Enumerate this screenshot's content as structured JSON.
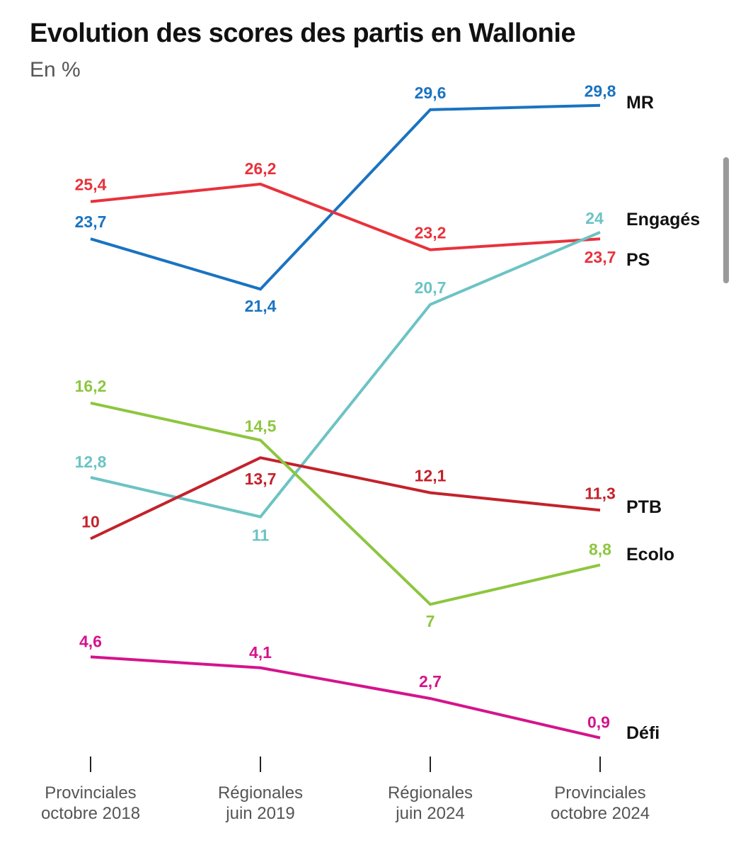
{
  "title": "Evolution des scores des partis en Wallonie",
  "subtitle": "En %",
  "chart_data": {
    "type": "line",
    "title": "Evolution des scores des partis en Wallonie",
    "ylabel": "En %",
    "categories": [
      [
        "Provinciales",
        "octobre 2018"
      ],
      [
        "Régionales",
        "juin 2019"
      ],
      [
        "Régionales",
        "juin 2024"
      ],
      [
        "Provinciales",
        "octobre 2024"
      ]
    ],
    "ylim": [
      0,
      31
    ],
    "series": [
      {
        "name": "MR",
        "color": "#1a73c1",
        "values": [
          23.7,
          21.4,
          29.6,
          29.8
        ],
        "labels": [
          "23,7",
          "21,4",
          "29,6",
          "29,8"
        ]
      },
      {
        "name": "PS",
        "color": "#e8323c",
        "values": [
          25.4,
          26.2,
          23.2,
          23.7
        ],
        "labels": [
          "25,4",
          "26,2",
          "23,2",
          "23,7"
        ]
      },
      {
        "name": "Engagés",
        "color": "#6cc3c4",
        "values": [
          12.8,
          11,
          20.7,
          24
        ],
        "labels": [
          "12,8",
          "11",
          "20,7",
          "24"
        ]
      },
      {
        "name": "PTB",
        "color": "#c3222b",
        "values": [
          10,
          13.7,
          12.1,
          11.3
        ],
        "labels": [
          "10",
          "13,7",
          "12,1",
          "11,3"
        ]
      },
      {
        "name": "Ecolo",
        "color": "#8dc63f",
        "values": [
          16.2,
          14.5,
          7,
          8.8
        ],
        "labels": [
          "16,2",
          "14,5",
          "7",
          "8,8"
        ]
      },
      {
        "name": "Défi",
        "color": "#d4148c",
        "values": [
          4.6,
          4.1,
          2.7,
          0.9
        ],
        "labels": [
          "4,6",
          "4,1",
          "2,7",
          "0,9"
        ]
      }
    ]
  }
}
